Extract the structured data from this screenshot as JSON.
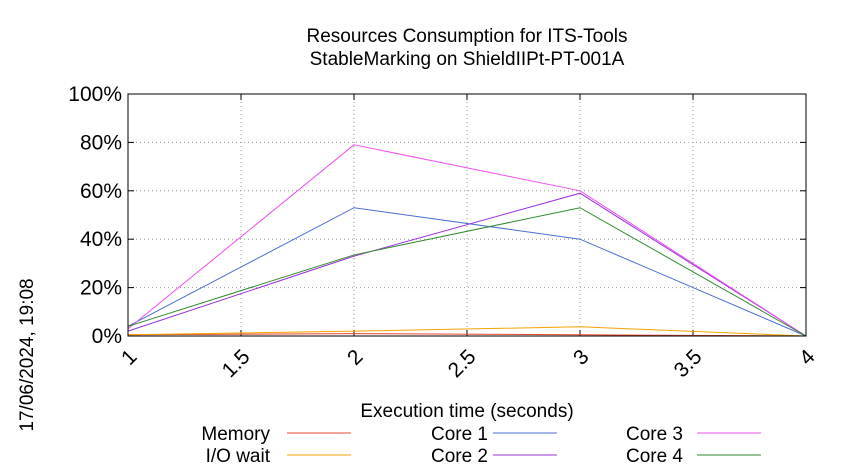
{
  "chart_data": {
    "type": "line",
    "title": [
      "Resources Consumption for ITS-Tools",
      "StableMarking on ShieldIIPt-PT-001A"
    ],
    "xlabel": "Execution time (seconds)",
    "ylabel": "",
    "side_label": "17/06/2024, 19:08",
    "xlim": [
      1,
      4
    ],
    "ylim": [
      0,
      100
    ],
    "x_ticks": [
      1,
      1.5,
      2,
      2.5,
      3,
      3.5,
      4
    ],
    "x_tick_labels": [
      "1",
      "1.5",
      "2",
      "2.5",
      "3",
      "3.5",
      "4"
    ],
    "y_ticks": [
      0,
      20,
      40,
      60,
      80,
      100
    ],
    "y_tick_labels": [
      "0%",
      "20%",
      "40%",
      "60%",
      "80%",
      "100%"
    ],
    "grid": true,
    "legend_position": "bottom",
    "x": [
      1,
      2,
      3,
      4
    ],
    "series": [
      {
        "name": "Memory",
        "color": "#e8472c",
        "values": [
          0.5,
          1.0,
          0.5,
          0
        ]
      },
      {
        "name": "I/O wait",
        "color": "#f5a300",
        "values": [
          0.5,
          2.0,
          3.8,
          0
        ]
      },
      {
        "name": "Core 1",
        "color": "#4a6fd4",
        "values": [
          4,
          53,
          40,
          0
        ]
      },
      {
        "name": "Core 2",
        "color": "#9a30e0",
        "values": [
          2,
          33,
          59,
          0
        ]
      },
      {
        "name": "Core 3",
        "color": "#ee50ee",
        "values": [
          3,
          79,
          60,
          0
        ]
      },
      {
        "name": "Core 4",
        "color": "#2e8b2e",
        "values": [
          4,
          33.5,
          53,
          0
        ]
      }
    ]
  }
}
